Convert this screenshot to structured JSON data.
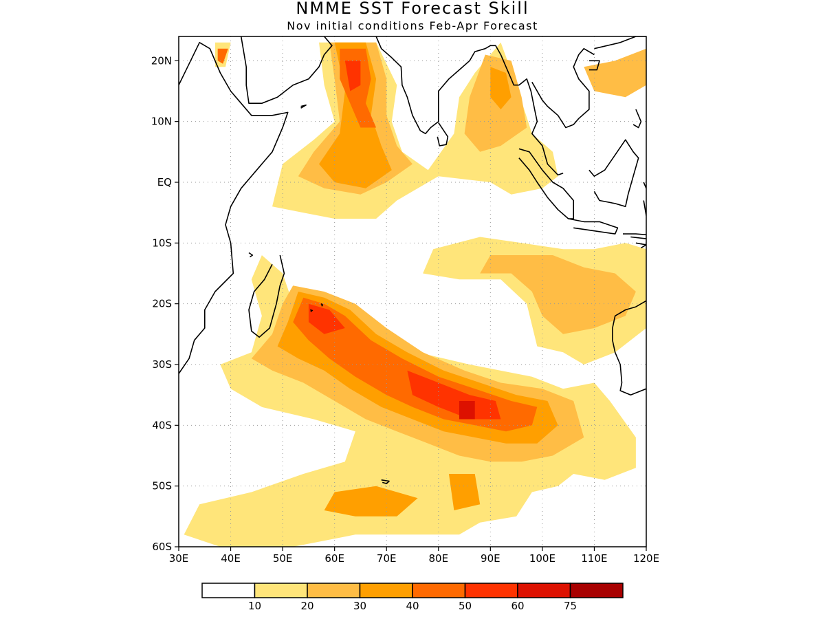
{
  "title": "NMME SST Forecast Skill",
  "subtitle": "Nov initial conditions  Feb-Apr Forecast",
  "map": {
    "lon_range": [
      30,
      120
    ],
    "lat_range": [
      -60,
      24
    ],
    "lat_ticks": [
      {
        "value": 20,
        "label": "20N"
      },
      {
        "value": 10,
        "label": "10N"
      },
      {
        "value": 0,
        "label": "EQ"
      },
      {
        "value": -10,
        "label": "10S"
      },
      {
        "value": -20,
        "label": "20S"
      },
      {
        "value": -30,
        "label": "30S"
      },
      {
        "value": -40,
        "label": "40S"
      },
      {
        "value": -50,
        "label": "50S"
      },
      {
        "value": -60,
        "label": "60S"
      }
    ],
    "lon_ticks": [
      {
        "value": 30,
        "label": "30E"
      },
      {
        "value": 40,
        "label": "40E"
      },
      {
        "value": 50,
        "label": "50E"
      },
      {
        "value": 60,
        "label": "60E"
      },
      {
        "value": 70,
        "label": "70E"
      },
      {
        "value": 80,
        "label": "80E"
      },
      {
        "value": 90,
        "label": "90E"
      },
      {
        "value": 100,
        "label": "100E"
      },
      {
        "value": 110,
        "label": "110E"
      },
      {
        "value": 120,
        "label": "120E"
      }
    ],
    "grid": true
  },
  "colorbar": {
    "colors": [
      "#ffffff",
      "#ffe57a",
      "#ffbd45",
      "#ff9f00",
      "#ff6a00",
      "#ff3300",
      "#dd1100",
      "#a80000"
    ],
    "labels": [
      "10",
      "20",
      "30",
      "40",
      "50",
      "60",
      "75"
    ]
  },
  "chart_data": {
    "type": "heatmap",
    "title": "NMME SST Forecast Skill",
    "subtitle": "Nov initial conditions  Feb-Apr Forecast",
    "xlim": [
      30,
      120
    ],
    "ylim": [
      -60,
      24
    ],
    "levels": [
      10,
      20,
      30,
      40,
      50,
      60,
      75
    ],
    "regions": [
      {
        "level": 10,
        "points": [
          [
            57,
            23
          ],
          [
            68,
            23
          ],
          [
            72,
            16
          ],
          [
            71,
            10
          ],
          [
            73,
            5
          ],
          [
            78,
            2
          ],
          [
            83,
            8
          ],
          [
            84,
            14
          ],
          [
            87,
            18
          ],
          [
            92,
            23
          ],
          [
            95,
            16
          ],
          [
            98,
            8
          ],
          [
            102,
            5
          ],
          [
            103,
            1
          ],
          [
            100,
            -1
          ],
          [
            94,
            -2
          ],
          [
            90,
            0
          ],
          [
            80,
            1
          ],
          [
            72,
            -3
          ],
          [
            68,
            -6
          ],
          [
            60,
            -6
          ],
          [
            54,
            -5
          ],
          [
            48,
            -4
          ],
          [
            50,
            3
          ],
          [
            56,
            7
          ],
          [
            60,
            10
          ],
          [
            58,
            16
          ]
        ]
      },
      {
        "level": 20,
        "points": [
          [
            59,
            23
          ],
          [
            68,
            23
          ],
          [
            70,
            17
          ],
          [
            70,
            11
          ],
          [
            72,
            6
          ],
          [
            75,
            3
          ],
          [
            70,
            0
          ],
          [
            65,
            -2
          ],
          [
            58,
            -1
          ],
          [
            53,
            1
          ],
          [
            56,
            5
          ],
          [
            61,
            10
          ],
          [
            60,
            17
          ]
        ]
      },
      {
        "level": 30,
        "points": [
          [
            60,
            23
          ],
          [
            66,
            23
          ],
          [
            68,
            17
          ],
          [
            67,
            11
          ],
          [
            69,
            6
          ],
          [
            71,
            2
          ],
          [
            66,
            -1
          ],
          [
            60,
            0
          ],
          [
            57,
            3
          ],
          [
            61,
            8
          ],
          [
            62,
            15
          ]
        ]
      },
      {
        "level": 40,
        "points": [
          [
            61,
            22
          ],
          [
            66,
            22
          ],
          [
            67,
            17
          ],
          [
            66,
            13
          ],
          [
            68,
            9
          ],
          [
            65,
            9
          ],
          [
            63,
            13
          ],
          [
            61,
            17
          ]
        ]
      },
      {
        "level": 50,
        "points": [
          [
            62,
            20
          ],
          [
            65,
            20
          ],
          [
            65,
            16
          ],
          [
            63,
            15
          ]
        ]
      },
      {
        "level": 20,
        "points": [
          [
            89,
            21
          ],
          [
            94,
            20
          ],
          [
            96,
            14
          ],
          [
            97,
            9
          ],
          [
            92,
            6
          ],
          [
            88,
            5
          ],
          [
            85,
            8
          ],
          [
            86,
            14
          ]
        ]
      },
      {
        "level": 30,
        "points": [
          [
            90,
            19
          ],
          [
            93,
            18
          ],
          [
            94,
            14
          ],
          [
            92,
            12
          ],
          [
            90,
            14
          ]
        ]
      },
      {
        "level": 10,
        "points": [
          [
            46,
            -12
          ],
          [
            50,
            -15
          ],
          [
            52,
            -20
          ],
          [
            60,
            -20
          ],
          [
            66,
            -24
          ],
          [
            70,
            -27
          ],
          [
            76,
            -28
          ],
          [
            86,
            -30
          ],
          [
            98,
            -32
          ],
          [
            104,
            -34
          ],
          [
            110,
            -33
          ],
          [
            113,
            -36
          ],
          [
            118,
            -42
          ],
          [
            118,
            -47
          ],
          [
            112,
            -49
          ],
          [
            106,
            -48
          ],
          [
            103,
            -50
          ],
          [
            98,
            -51
          ],
          [
            95,
            -55
          ],
          [
            88,
            -56
          ],
          [
            84,
            -58
          ],
          [
            74,
            -58
          ],
          [
            64,
            -58
          ],
          [
            52,
            -60
          ],
          [
            38,
            -60
          ],
          [
            31,
            -58
          ],
          [
            34,
            -53
          ],
          [
            44,
            -51
          ],
          [
            54,
            -48
          ],
          [
            62,
            -46
          ],
          [
            64,
            -41
          ],
          [
            56,
            -39
          ],
          [
            46,
            -37
          ],
          [
            40,
            -34
          ],
          [
            38,
            -30
          ],
          [
            44,
            -28
          ],
          [
            46,
            -22
          ],
          [
            44,
            -16
          ]
        ]
      },
      {
        "level": 10,
        "points": [
          [
            79,
            -11
          ],
          [
            88,
            -9
          ],
          [
            96,
            -10
          ],
          [
            104,
            -11
          ],
          [
            110,
            -11
          ],
          [
            116,
            -10
          ],
          [
            120,
            -11
          ],
          [
            120,
            -24
          ],
          [
            114,
            -28
          ],
          [
            108,
            -30
          ],
          [
            104,
            -28
          ],
          [
            99,
            -27
          ],
          [
            97,
            -20
          ],
          [
            92,
            -16
          ],
          [
            84,
            -16
          ],
          [
            77,
            -15
          ]
        ]
      },
      {
        "level": 20,
        "points": [
          [
            90,
            -12
          ],
          [
            96,
            -12
          ],
          [
            102,
            -12
          ],
          [
            108,
            -14
          ],
          [
            114,
            -15
          ],
          [
            118,
            -18
          ],
          [
            116,
            -22
          ],
          [
            110,
            -24
          ],
          [
            104,
            -25
          ],
          [
            100,
            -22
          ],
          [
            98,
            -18
          ],
          [
            94,
            -15
          ],
          [
            88,
            -15
          ]
        ]
      },
      {
        "level": 20,
        "points": [
          [
            52,
            -17
          ],
          [
            58,
            -18
          ],
          [
            64,
            -20
          ],
          [
            70,
            -24
          ],
          [
            77,
            -28
          ],
          [
            85,
            -31
          ],
          [
            92,
            -33
          ],
          [
            100,
            -34
          ],
          [
            106,
            -36
          ],
          [
            108,
            -42
          ],
          [
            102,
            -45
          ],
          [
            96,
            -46
          ],
          [
            90,
            -46
          ],
          [
            84,
            -45
          ],
          [
            78,
            -43
          ],
          [
            72,
            -41
          ],
          [
            66,
            -39
          ],
          [
            60,
            -36
          ],
          [
            54,
            -33
          ],
          [
            48,
            -31
          ],
          [
            44,
            -29
          ],
          [
            48,
            -25
          ],
          [
            50,
            -20
          ]
        ]
      },
      {
        "level": 30,
        "points": [
          [
            53,
            -18
          ],
          [
            58,
            -19
          ],
          [
            63,
            -21
          ],
          [
            68,
            -25
          ],
          [
            74,
            -28
          ],
          [
            81,
            -31
          ],
          [
            88,
            -33
          ],
          [
            95,
            -35
          ],
          [
            101,
            -36
          ],
          [
            103,
            -40
          ],
          [
            99,
            -43
          ],
          [
            93,
            -43
          ],
          [
            87,
            -42
          ],
          [
            81,
            -41
          ],
          [
            75,
            -39
          ],
          [
            69,
            -37
          ],
          [
            63,
            -34
          ],
          [
            58,
            -31
          ],
          [
            53,
            -29
          ],
          [
            49,
            -27
          ],
          [
            51,
            -23
          ]
        ]
      },
      {
        "level": 40,
        "points": [
          [
            54,
            -19
          ],
          [
            58,
            -20
          ],
          [
            62,
            -22
          ],
          [
            67,
            -26
          ],
          [
            73,
            -29
          ],
          [
            80,
            -32
          ],
          [
            87,
            -34
          ],
          [
            94,
            -36
          ],
          [
            99,
            -37
          ],
          [
            98,
            -40
          ],
          [
            93,
            -41
          ],
          [
            87,
            -40
          ],
          [
            81,
            -39
          ],
          [
            75,
            -37
          ],
          [
            70,
            -35
          ],
          [
            64,
            -32
          ],
          [
            59,
            -29
          ],
          [
            55,
            -26
          ],
          [
            52,
            -23
          ]
        ]
      },
      {
        "level": 50,
        "points": [
          [
            55,
            -20
          ],
          [
            59,
            -21
          ],
          [
            62,
            -24
          ],
          [
            58,
            -25
          ],
          [
            55,
            -23
          ]
        ]
      },
      {
        "level": 50,
        "points": [
          [
            74,
            -31
          ],
          [
            80,
            -33
          ],
          [
            86,
            -35
          ],
          [
            91,
            -36
          ],
          [
            92,
            -39
          ],
          [
            86,
            -39
          ],
          [
            80,
            -37
          ],
          [
            75,
            -35
          ]
        ]
      },
      {
        "level": 60,
        "points": [
          [
            84,
            -36
          ],
          [
            87,
            -36
          ],
          [
            87,
            -39
          ],
          [
            84,
            -39
          ]
        ]
      },
      {
        "level": 10,
        "points": [
          [
            37,
            23
          ],
          [
            40,
            23
          ],
          [
            39,
            19
          ],
          [
            37,
            19
          ]
        ]
      },
      {
        "level": 40,
        "points": [
          [
            37.5,
            22
          ],
          [
            39.5,
            22
          ],
          [
            38.5,
            19.5
          ],
          [
            37.5,
            20
          ]
        ]
      },
      {
        "level": 20,
        "points": [
          [
            108,
            19
          ],
          [
            114,
            20
          ],
          [
            120,
            22
          ],
          [
            120,
            16
          ],
          [
            116,
            14
          ],
          [
            110,
            15
          ]
        ]
      },
      {
        "level": 30,
        "points": [
          [
            60,
            -51
          ],
          [
            68,
            -50
          ],
          [
            76,
            -52
          ],
          [
            72,
            -55
          ],
          [
            64,
            -55
          ],
          [
            58,
            -54
          ]
        ]
      },
      {
        "level": 30,
        "points": [
          [
            82,
            -48
          ],
          [
            87,
            -48
          ],
          [
            88,
            -53
          ],
          [
            83,
            -54
          ]
        ]
      }
    ]
  }
}
